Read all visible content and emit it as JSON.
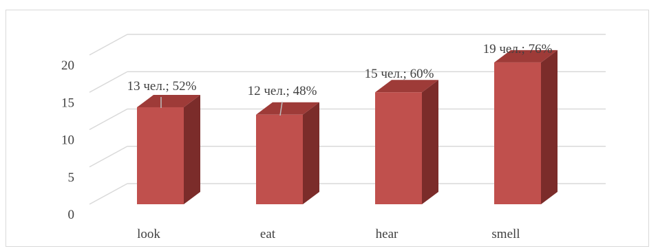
{
  "chart_data": {
    "type": "bar",
    "style": "3d-clustered-column",
    "categories": [
      "look",
      "eat",
      "hear",
      "smell"
    ],
    "values": [
      13,
      12,
      15,
      19
    ],
    "data_labels": [
      "13 чел.; 52%",
      "12 чел.; 48%",
      "15 чел.; 60%",
      "19 чел.; 76%"
    ],
    "ylim": [
      0,
      20
    ],
    "y_ticks": [
      "0",
      "5",
      "10",
      "15",
      "20"
    ],
    "grid": true,
    "legend": "none",
    "colors": {
      "bar_front": "#c0504d",
      "bar_side": "#7b2c2a",
      "bar_top": "#9e3b38",
      "grid": "#d9d9d9",
      "text": "#404040"
    }
  }
}
